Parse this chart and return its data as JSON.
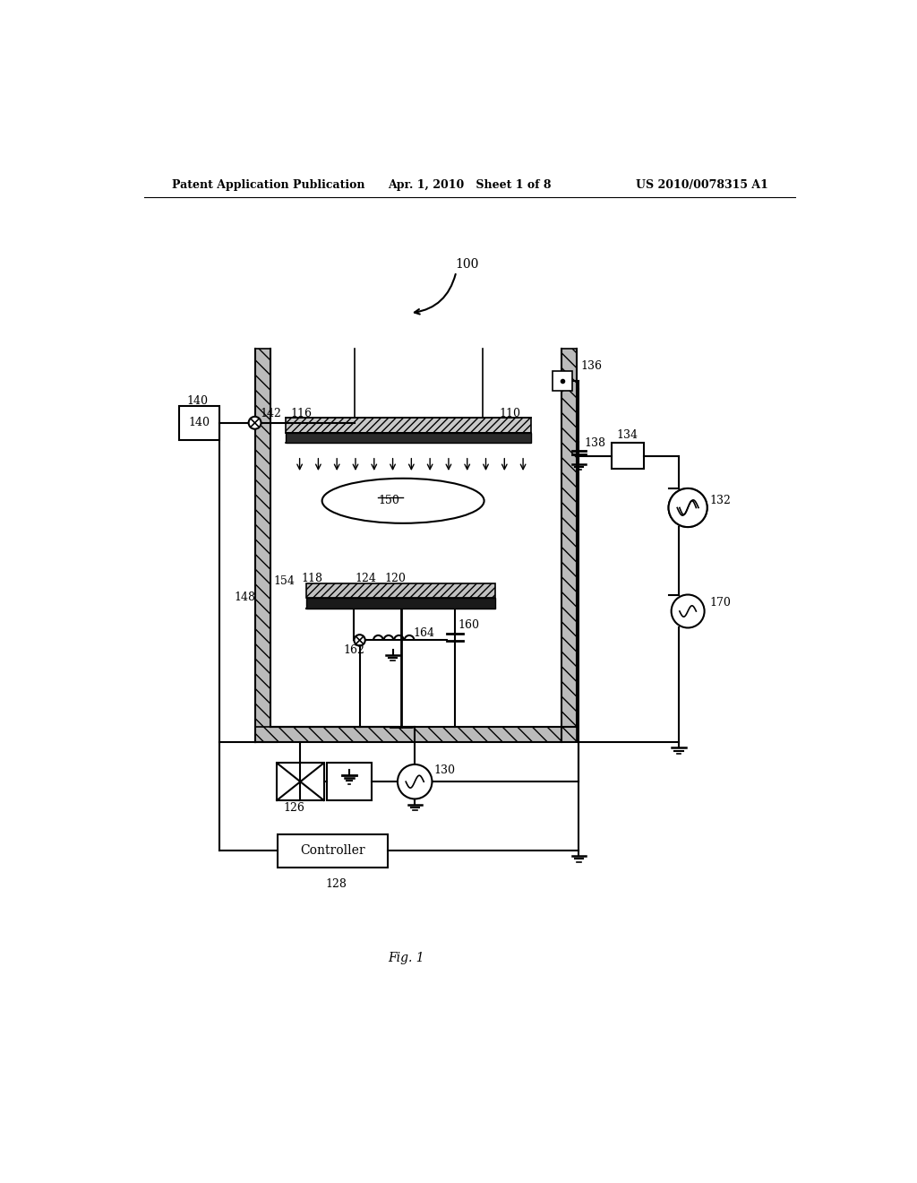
{
  "bg_color": "#ffffff",
  "header_left": "Patent Application Publication",
  "header_center": "Apr. 1, 2010   Sheet 1 of 8",
  "header_right": "US 2010/0078315 A1",
  "fig_label": "Fig. 1",
  "controller_label": "Controller",
  "ref_100": "100",
  "ref_140": "140",
  "ref_142": "142",
  "ref_148": "148",
  "ref_154": "154",
  "ref_116": "116",
  "ref_110": "110",
  "ref_150": "150",
  "ref_118": "118",
  "ref_124": "124",
  "ref_120": "120",
  "ref_162": "162",
  "ref_164": "164",
  "ref_160": "160",
  "ref_126": "126",
  "ref_128": "128",
  "ref_130": "130",
  "ref_136": "136",
  "ref_138": "138",
  "ref_134": "134",
  "ref_132": "132",
  "ref_170": "170"
}
